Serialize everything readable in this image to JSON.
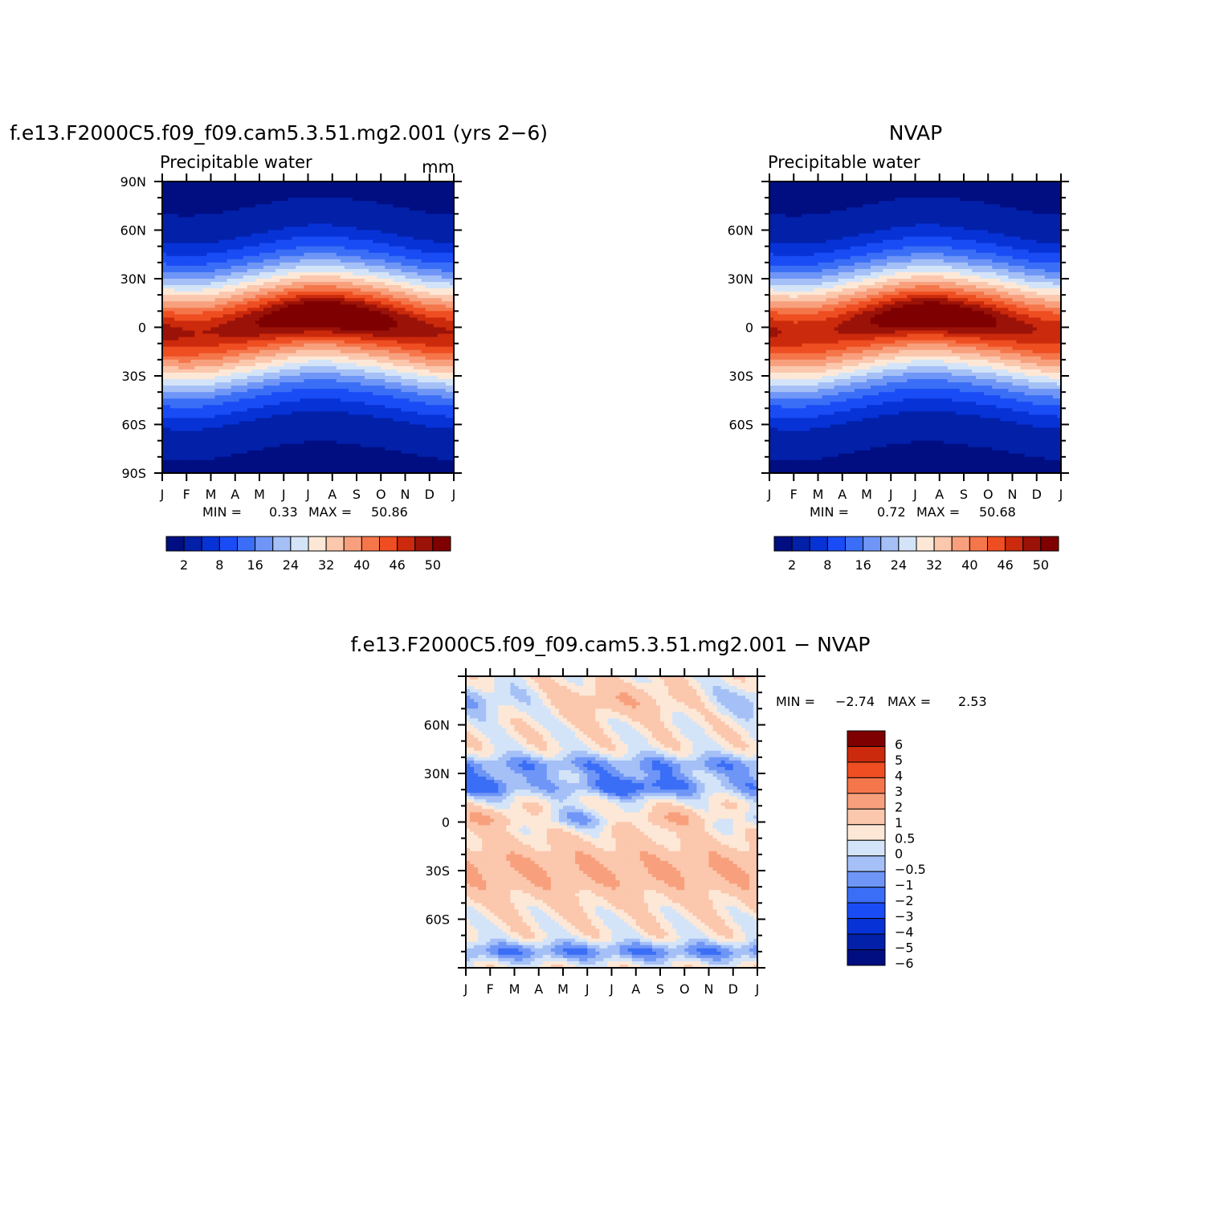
{
  "panels": [
    {
      "title": "f.e13.F2000C5.f09_f09.cam5.3.51.mg2.001 (yrs 2−6)",
      "subtitle": "Precipitable water",
      "units": "mm",
      "min_label": "MIN =",
      "min_value": "0.33",
      "max_label": "MAX =",
      "max_value": "50.86",
      "y_ticks": [
        "90N",
        "60N",
        "30N",
        "0",
        "30S",
        "60S",
        "90S"
      ],
      "x_ticks": [
        "J",
        "F",
        "M",
        "A",
        "M",
        "J",
        "J",
        "A",
        "S",
        "O",
        "N",
        "D",
        "J"
      ],
      "colorbar_labels": [
        "2",
        "8",
        "16",
        "24",
        "32",
        "40",
        "46",
        "50"
      ]
    },
    {
      "title": "NVAP",
      "subtitle": "Precipitable water",
      "units": "",
      "min_label": "MIN =",
      "min_value": "0.72",
      "max_label": "MAX =",
      "max_value": "50.68",
      "y_ticks": [
        "60N",
        "30N",
        "0",
        "30S",
        "60S"
      ],
      "x_ticks": [
        "J",
        "F",
        "M",
        "A",
        "M",
        "J",
        "J",
        "A",
        "S",
        "O",
        "N",
        "D",
        "J"
      ],
      "colorbar_labels": [
        "2",
        "8",
        "16",
        "24",
        "32",
        "40",
        "46",
        "50"
      ]
    },
    {
      "title": "f.e13.F2000C5.f09_f09.cam5.3.51.mg2.001 − NVAP",
      "subtitle": "",
      "units": "",
      "min_label": "MIN =",
      "min_value": "−2.74",
      "max_label": "MAX =",
      "max_value": "2.53",
      "y_ticks": [
        "60N",
        "30N",
        "0",
        "30S",
        "60S"
      ],
      "x_ticks": [
        "J",
        "F",
        "M",
        "A",
        "M",
        "J",
        "J",
        "A",
        "S",
        "O",
        "N",
        "D",
        "J"
      ],
      "colorbar_labels": [
        "6",
        "5",
        "4",
        "3",
        "2",
        "1",
        "0.5",
        "0",
        "−0.5",
        "−1",
        "−2",
        "−3",
        "−4",
        "−5",
        "−6"
      ]
    }
  ],
  "colors": {
    "sequential": [
      "#000e82",
      "#0220a8",
      "#0632d6",
      "#1a4cf5",
      "#3b6ef6",
      "#6f96f6",
      "#a5c0f7",
      "#d4e4f8",
      "#fde8d7",
      "#fbc7ad",
      "#f8a07d",
      "#f5764b",
      "#ee4e21",
      "#cc2a0c",
      "#9b1208",
      "#7f0000"
    ],
    "diverging": [
      "#000e82",
      "#0220a8",
      "#0632d6",
      "#1a4cf5",
      "#3b6ef6",
      "#6f96f6",
      "#a5c0f7",
      "#d4e4f8",
      "#fde8d7",
      "#fbc7ad",
      "#f8a07d",
      "#f5764b",
      "#ee4e21",
      "#cc2a0c",
      "#7f0000"
    ]
  },
  "chart_data": [
    {
      "type": "heatmap",
      "title": "f.e13.F2000C5.f09_f09.cam5.3.51.mg2.001 (yrs 2−6)",
      "subtitle": "Precipitable water",
      "units": "mm",
      "x": [
        "J",
        "F",
        "M",
        "A",
        "M",
        "J",
        "J",
        "A",
        "S",
        "O",
        "N",
        "D",
        "J"
      ],
      "y_range": [
        -90,
        90
      ],
      "levels": [
        0,
        2,
        5,
        8,
        12,
        16,
        20,
        24,
        28,
        32,
        36,
        40,
        43,
        46,
        48,
        50
      ],
      "min": 0.33,
      "max": 50.86,
      "peak_latitude_by_month": [
        -3,
        -4,
        -3,
        0,
        3,
        6,
        8,
        8,
        6,
        4,
        1,
        -2,
        -3
      ]
    },
    {
      "type": "heatmap",
      "title": "NVAP",
      "subtitle": "Precipitable water",
      "x": [
        "J",
        "F",
        "M",
        "A",
        "M",
        "J",
        "J",
        "A",
        "S",
        "O",
        "N",
        "D",
        "J"
      ],
      "y_range": [
        -90,
        90
      ],
      "levels": [
        0,
        2,
        5,
        8,
        12,
        16,
        20,
        24,
        28,
        32,
        36,
        40,
        43,
        46,
        48,
        50
      ],
      "min": 0.72,
      "max": 50.68,
      "peak_latitude_by_month": [
        -3,
        -4,
        -3,
        0,
        3,
        6,
        8,
        8,
        6,
        4,
        1,
        -2,
        -3
      ]
    },
    {
      "type": "heatmap",
      "title": "f.e13.F2000C5.f09_f09.cam5.3.51.mg2.001 − NVAP",
      "x": [
        "J",
        "F",
        "M",
        "A",
        "M",
        "J",
        "J",
        "A",
        "S",
        "O",
        "N",
        "D",
        "J"
      ],
      "y_range": [
        -90,
        90
      ],
      "levels": [
        -6,
        -5,
        -4,
        -3,
        -2,
        -1,
        -0.5,
        0,
        0.5,
        1,
        2,
        3,
        4,
        5,
        6
      ],
      "min": -2.74,
      "max": 2.53
    }
  ]
}
